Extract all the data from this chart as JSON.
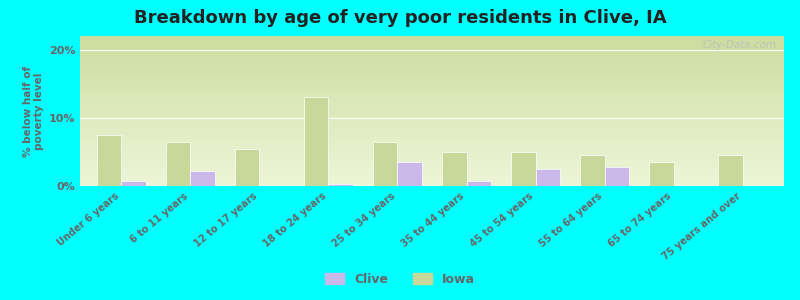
{
  "title": "Breakdown by age of very poor residents in Clive, IA",
  "ylabel": "% below half of\npoverty level",
  "categories": [
    "Under 6 years",
    "6 to 11 years",
    "12 to 17 years",
    "18 to 24 years",
    "25 to 34 years",
    "35 to 44 years",
    "45 to 54 years",
    "55 to 64 years",
    "65 to 74 years",
    "75 years and over"
  ],
  "clive_values": [
    0.8,
    2.2,
    0.0,
    0.3,
    3.5,
    0.8,
    2.5,
    2.8,
    0.0,
    0.0
  ],
  "iowa_values": [
    7.5,
    6.5,
    5.5,
    13.0,
    6.5,
    5.0,
    5.0,
    4.5,
    3.5,
    4.5
  ],
  "clive_color": "#c9b8e8",
  "iowa_color": "#c8d89a",
  "plot_bg_top": "#ccdda0",
  "plot_bg_bottom": "#eef5d8",
  "outer_bg": "#00ffff",
  "ylim": [
    0,
    22
  ],
  "yticks": [
    0,
    10,
    20
  ],
  "ytick_labels": [
    "0%",
    "10%",
    "20%"
  ],
  "title_fontsize": 13,
  "label_fontsize": 8,
  "bar_width": 0.35,
  "watermark": "City-Data.com"
}
